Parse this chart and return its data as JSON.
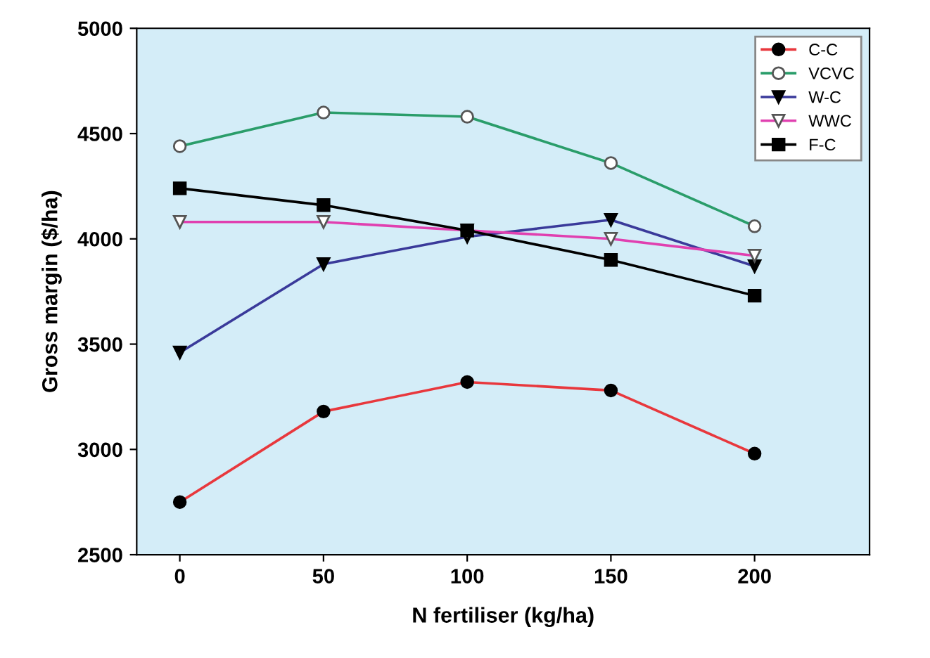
{
  "chart_data": {
    "type": "line",
    "xlabel": "N fertiliser (kg/ha)",
    "ylabel": "Gross margin ($/ha)",
    "x": [
      0,
      50,
      100,
      150,
      200
    ],
    "xlim": [
      -15,
      240
    ],
    "xticks": [
      0,
      50,
      100,
      150,
      200
    ],
    "ylim": [
      2500,
      5000
    ],
    "yticks": [
      2500,
      3000,
      3500,
      4000,
      4500,
      5000
    ],
    "grid": false,
    "legend": "top right",
    "series": [
      {
        "name": "C-C",
        "color": "#e8383d",
        "marker": "circle",
        "values": [
          2750,
          3180,
          3320,
          3280,
          2980
        ]
      },
      {
        "name": "VCVC",
        "color": "#2a9d6a",
        "marker": "circle",
        "values": [
          4440,
          4600,
          4580,
          4360,
          4060
        ]
      },
      {
        "name": "W-C",
        "color": "#3a3a9a",
        "marker": "triangle",
        "values": [
          3460,
          3880,
          4010,
          4090,
          3870
        ]
      },
      {
        "name": "WWC",
        "color": "#e040b0",
        "marker": "triangle",
        "values": [
          4080,
          4080,
          4040,
          4000,
          3920
        ]
      },
      {
        "name": "F-C",
        "color": "#000000",
        "marker": "square",
        "values": [
          4240,
          4160,
          4040,
          3900,
          3730
        ]
      }
    ]
  }
}
